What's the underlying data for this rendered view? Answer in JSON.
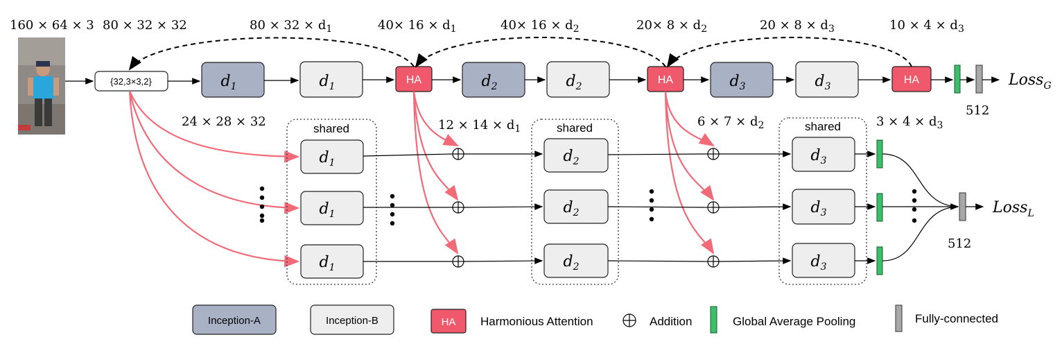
{
  "dims": {
    "input": "160 × 64 × 3",
    "conv": "80 × 32 × 32",
    "b1": "80 × 32 × d",
    "b1_sub": "1",
    "ha1": "40× 16 × d",
    "ha1_sub": "1",
    "b2": "40× 16 × d",
    "b2_sub": "2",
    "ha2": "20× 8 × d",
    "ha2_sub": "2",
    "b3": "20 × 8 × d",
    "b3_sub": "3",
    "ha3": "10 × 4 × d",
    "ha3_sub": "3",
    "local_in": "24 × 28 × 32",
    "local_1": "12 × 14 × d",
    "local_1_sub": "1",
    "local_2": "6 × 7 × d",
    "local_2_sub": "2",
    "local_3": "3 × 4 × d",
    "local_3_sub": "3"
  },
  "conv_label": "{32,3×3,2}",
  "block_labels": {
    "d1": "d",
    "d1_sub": "1",
    "d2": "d",
    "d2_sub": "2",
    "d3": "d",
    "d3_sub": "3"
  },
  "ha_label": "HA",
  "shared_label": "shared",
  "loss_g": "Loss",
  "loss_g_sub": "G",
  "loss_l": "Loss",
  "loss_l_sub": "L",
  "fc_dim_top": "512",
  "fc_dim_bottom": "512",
  "legend": {
    "inception_a": "Inception-A",
    "inception_b": "Inception-B",
    "ha_box": "HA",
    "ha_text": "Harmonious Attention",
    "addition": "Addition",
    "gap": "Global Average Pooling",
    "fc": "Fully-connected"
  },
  "colors": {
    "inception_a": "#a9b2c5",
    "inception_b": "#eeeeee",
    "ha": "#f0596b",
    "gap": "#3dbf6a",
    "fc": "#a8a8a8",
    "attention_arrow": "#f06a78"
  }
}
